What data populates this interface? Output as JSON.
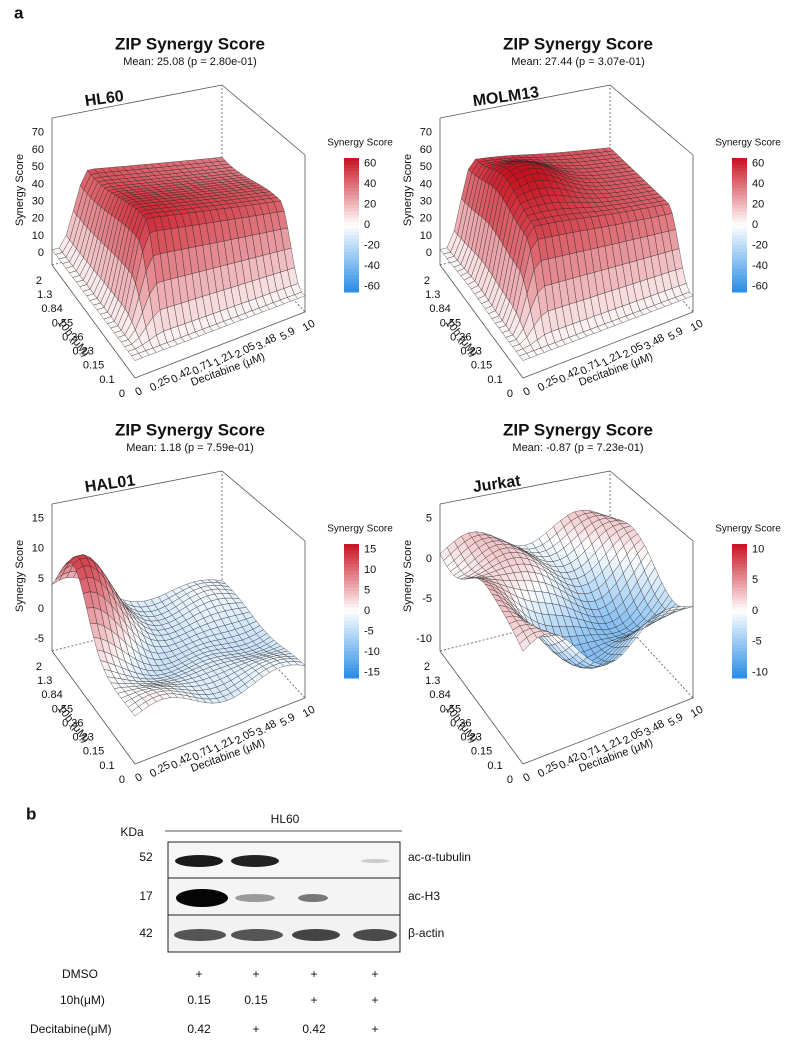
{
  "panel_a": {
    "label": "a",
    "plots": [
      {
        "title": "ZIP Synergy Score",
        "subtitle": "Mean: 25.08 (p = 2.80e-01)",
        "cell_line": "HL60",
        "z_label": "Synergy Score",
        "zticks": [
          "0",
          "10",
          "20",
          "30",
          "40",
          "50",
          "60",
          "70"
        ],
        "y_label": "10h (μM)",
        "yticks": [
          "0",
          "0.1",
          "0.15",
          "0.23",
          "0.36",
          "0.55",
          "0.84",
          "1.3",
          "2"
        ],
        "x_label": "Decitabine (μM)",
        "xticks": [
          "0",
          "0.25",
          "0.42",
          "0.71",
          "1.21",
          "2.05",
          "3.48",
          "5.9",
          "10"
        ],
        "legend_title": "Synergy Score",
        "legend_ticks": [
          "60",
          "40",
          "20",
          "0",
          "-20",
          "-40",
          "-60"
        ]
      },
      {
        "title": "ZIP Synergy Score",
        "subtitle": "Mean: 27.44 (p = 3.07e-01)",
        "cell_line": "MOLM13",
        "z_label": "Synergy Score",
        "zticks": [
          "0",
          "10",
          "20",
          "30",
          "40",
          "50",
          "60",
          "70"
        ],
        "y_label": "10h (μM)",
        "yticks": [
          "0",
          "0.1",
          "0.15",
          "0.23",
          "0.36",
          "0.55",
          "0.84",
          "1.3",
          "2"
        ],
        "x_label": "Decitabine (μM)",
        "xticks": [
          "0",
          "0.25",
          "0.42",
          "0.71",
          "1.21",
          "2.05",
          "3.48",
          "5.9",
          "10"
        ],
        "legend_title": "Synergy Score",
        "legend_ticks": [
          "60",
          "40",
          "20",
          "0",
          "-20",
          "-40",
          "-60"
        ]
      },
      {
        "title": "ZIP Synergy Score",
        "subtitle": "Mean: 1.18 (p = 7.59e-01)",
        "cell_line": "HAL01",
        "z_label": "Synergy Score",
        "zticks": [
          "-5",
          "0",
          "5",
          "10",
          "15"
        ],
        "y_label": "10h (μM)",
        "yticks": [
          "0",
          "0.1",
          "0.15",
          "0.23",
          "0.36",
          "0.55",
          "0.84",
          "1.3",
          "2"
        ],
        "x_label": "Decitabine (μM)",
        "xticks": [
          "0",
          "0.25",
          "0.42",
          "0.71",
          "1.21",
          "2.05",
          "3.48",
          "5.9",
          "10"
        ],
        "legend_title": "Synergy Score",
        "legend_ticks": [
          "15",
          "10",
          "5",
          "0",
          "-5",
          "-10",
          "-15"
        ]
      },
      {
        "title": "ZIP Synergy Score",
        "subtitle": "Mean: -0.87 (p = 7.23e-01)",
        "cell_line": "Jurkat",
        "z_label": "Synergy Score",
        "zticks": [
          "-10",
          "-5",
          "0",
          "5"
        ],
        "y_label": "10h (μM)",
        "yticks": [
          "0",
          "0.1",
          "0.15",
          "0.23",
          "0.36",
          "0.55",
          "0.84",
          "1.3",
          "2"
        ],
        "x_label": "Decitabine (μM)",
        "xticks": [
          "0",
          "0.25",
          "0.42",
          "0.71",
          "1.21",
          "2.05",
          "3.48",
          "5.9",
          "10"
        ],
        "legend_title": "Synergy Score",
        "legend_ticks": [
          "10",
          "5",
          "0",
          "-5",
          "-10"
        ]
      }
    ]
  },
  "panel_b": {
    "label": "b",
    "unit": "KDa",
    "cell_line": "HL60",
    "blots": [
      {
        "kda": "52",
        "protein": "ac-α-tubulin"
      },
      {
        "kda": "17",
        "protein": "ac-H3"
      },
      {
        "kda": "42",
        "protein": "β-actin"
      }
    ],
    "conditions": [
      {
        "name": "DMSO",
        "lanes": [
          "+",
          "+",
          "+",
          "+"
        ]
      },
      {
        "name": "10h(μM)",
        "lanes": [
          "0.15",
          "0.15",
          "+",
          "+"
        ]
      },
      {
        "name": "Decitabine(μM)",
        "lanes": [
          "0.42",
          "+",
          "0.42",
          "+"
        ]
      }
    ]
  }
}
